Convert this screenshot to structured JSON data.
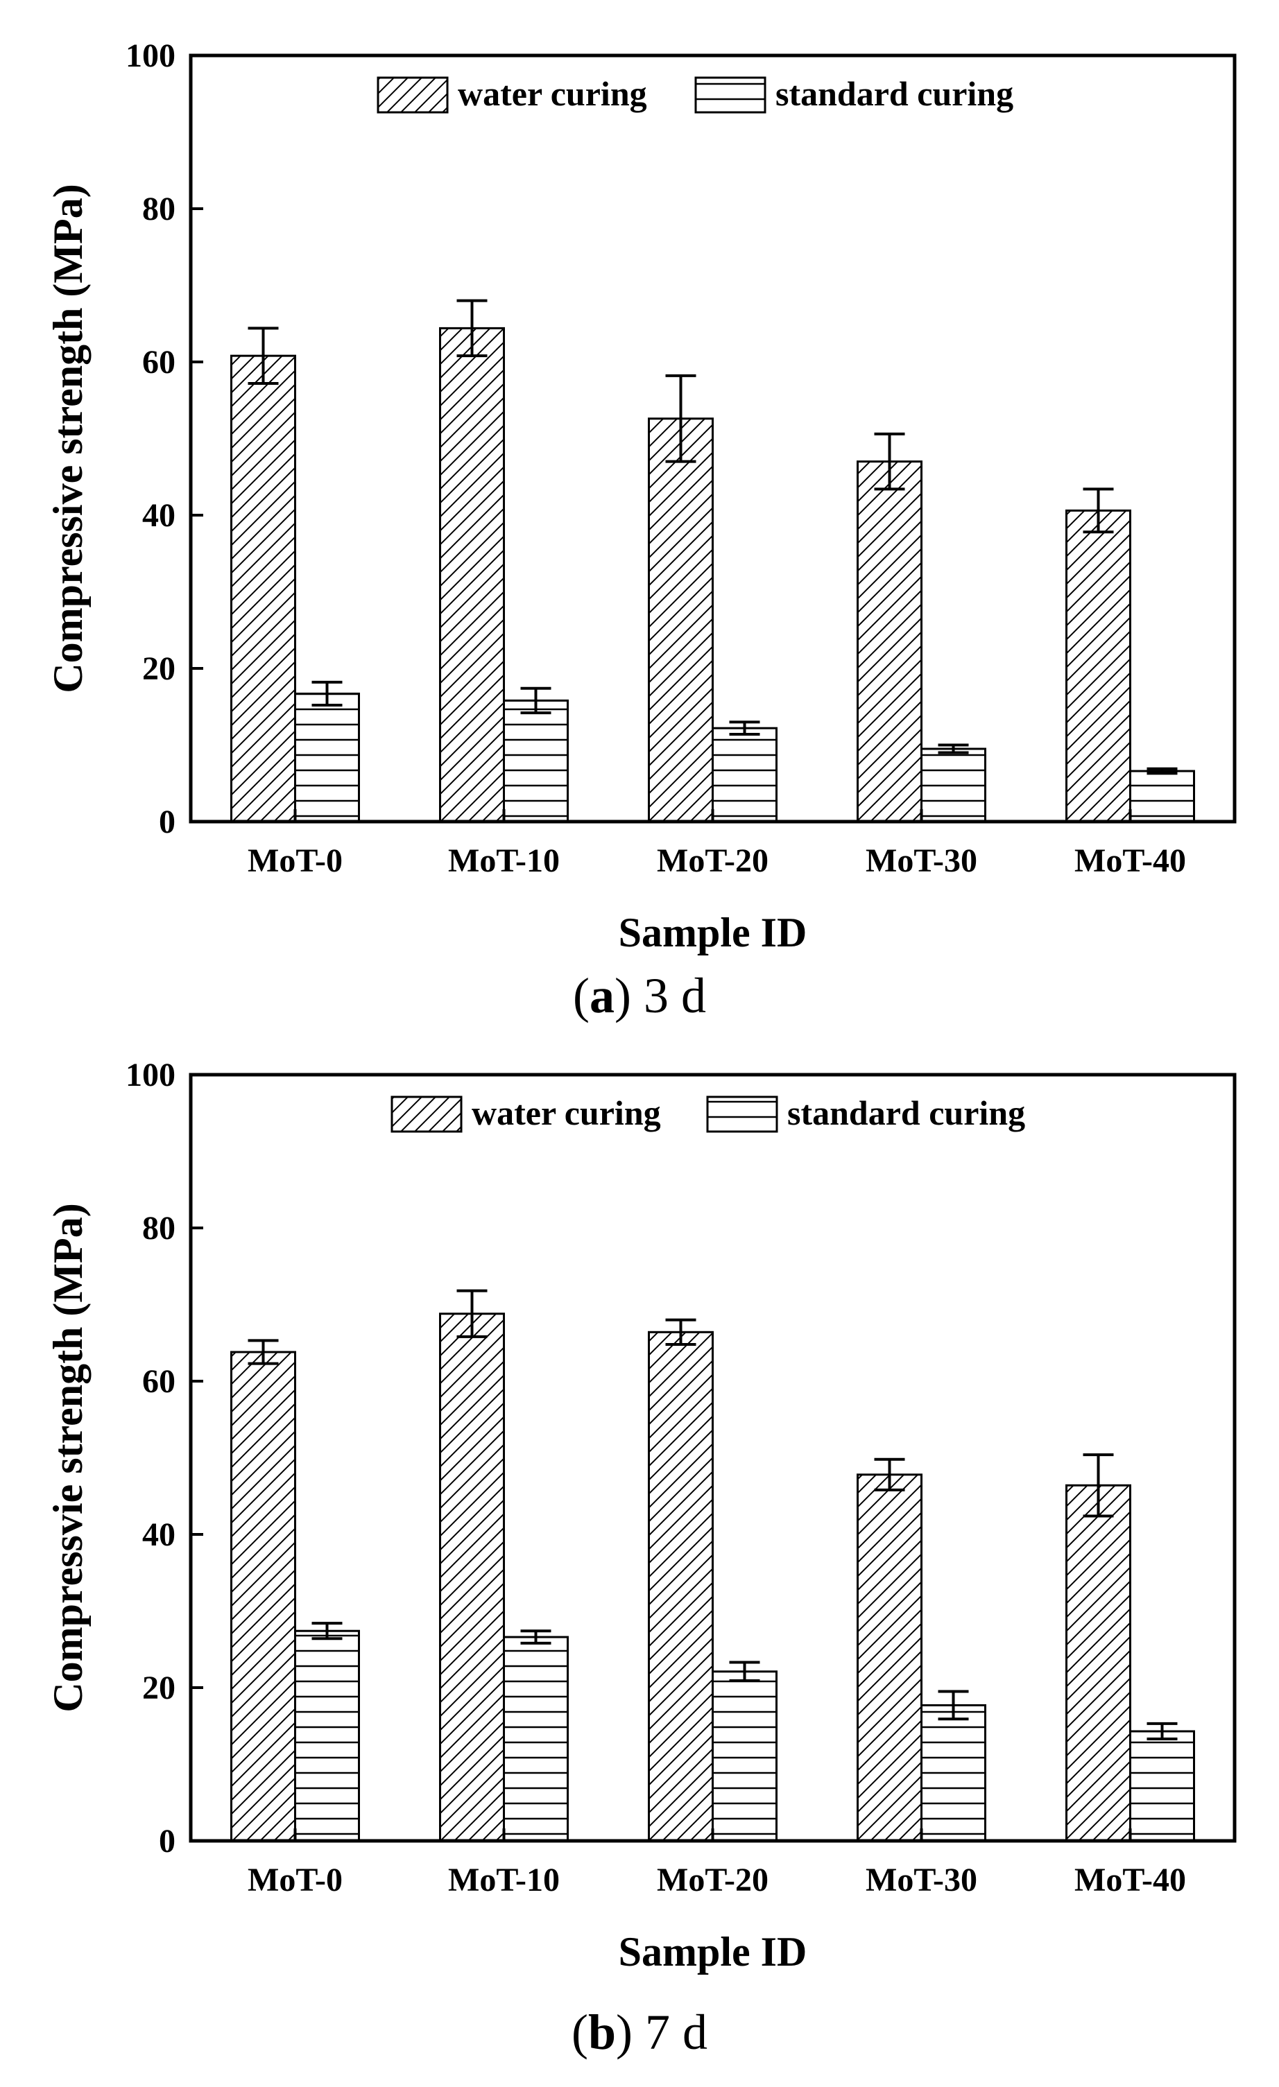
{
  "legend": {
    "water": "water curing",
    "standard": "standard curing"
  },
  "chart_data": [
    {
      "type": "bar",
      "panel_label": "a",
      "caption": "3 d",
      "title": "",
      "xlabel": "Sample ID",
      "ylabel": "Compressive strength (MPa)",
      "ylim": [
        0,
        100
      ],
      "yticks": [
        "0",
        "20",
        "40",
        "60",
        "80",
        "100"
      ],
      "categories": [
        "MoT-0",
        "MoT-10",
        "MoT-20",
        "MoT-30",
        "MoT-40"
      ],
      "series": [
        {
          "name": "water curing",
          "pattern": "diagonal",
          "values": [
            60.8,
            64.4,
            52.6,
            47.0,
            40.6
          ],
          "errors": [
            3.6,
            3.6,
            5.6,
            3.6,
            2.8
          ]
        },
        {
          "name": "standard curing",
          "pattern": "horizontal",
          "values": [
            16.7,
            15.8,
            12.2,
            9.5,
            6.6
          ],
          "errors": [
            1.5,
            1.6,
            0.8,
            0.5,
            0.3
          ]
        }
      ]
    },
    {
      "type": "bar",
      "panel_label": "b",
      "caption": "7 d",
      "title": "",
      "xlabel": "Sample ID",
      "ylabel": "Compressvie strength (MPa)",
      "ylim": [
        0,
        100
      ],
      "yticks": [
        "0",
        "20",
        "40",
        "60",
        "80",
        "100"
      ],
      "categories": [
        "MoT-0",
        "MoT-10",
        "MoT-20",
        "MoT-30",
        "MoT-40"
      ],
      "series": [
        {
          "name": "water curing",
          "pattern": "diagonal",
          "values": [
            63.8,
            68.8,
            66.4,
            47.8,
            46.4
          ],
          "errors": [
            1.5,
            3.0,
            1.6,
            2.0,
            4.0
          ]
        },
        {
          "name": "standard curing",
          "pattern": "horizontal",
          "values": [
            27.4,
            26.6,
            22.1,
            17.7,
            14.3
          ],
          "errors": [
            1.0,
            0.8,
            1.2,
            1.8,
            1.0
          ]
        }
      ]
    }
  ]
}
